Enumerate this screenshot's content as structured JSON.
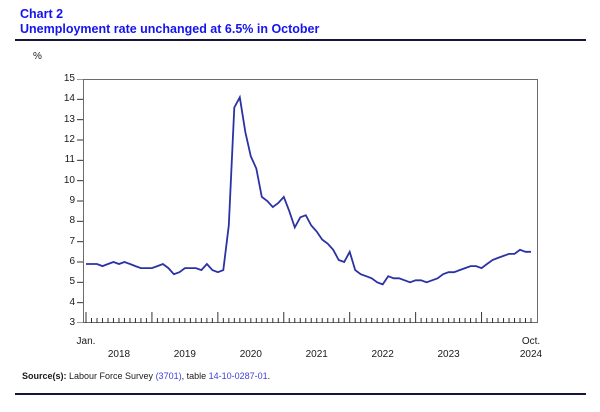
{
  "header": {
    "chart_label": "Chart 2",
    "title": "Unemployment rate unchanged at 6.5% in October"
  },
  "chart_data": {
    "type": "line",
    "title": "Unemployment rate unchanged at 6.5% in October",
    "unit_label": "%",
    "ylim": [
      3,
      15
    ],
    "y_ticks": [
      15,
      14,
      13,
      12,
      11,
      10,
      9,
      8,
      7,
      6,
      5,
      4,
      3
    ],
    "x_frequency": "monthly",
    "x_start": "2018-01",
    "x_end": "2024-10",
    "x_first_month_label": "Jan.",
    "x_last_month_label": "Oct.",
    "year_labels": [
      "2018",
      "2019",
      "2020",
      "2021",
      "2022",
      "2023",
      "2024"
    ],
    "grid": false,
    "legend": "none",
    "line_color": "#2b32a5",
    "series": [
      {
        "name": "Unemployment rate (%)",
        "values": [
          5.9,
          5.9,
          5.9,
          5.8,
          5.9,
          6.0,
          5.9,
          6.0,
          5.9,
          5.8,
          5.7,
          5.7,
          5.7,
          5.8,
          5.9,
          5.7,
          5.4,
          5.5,
          5.7,
          5.7,
          5.7,
          5.6,
          5.9,
          5.6,
          5.5,
          5.6,
          7.8,
          13.6,
          14.1,
          12.4,
          11.2,
          10.6,
          9.2,
          9.0,
          8.7,
          8.9,
          9.2,
          8.5,
          7.7,
          8.2,
          8.3,
          7.8,
          7.5,
          7.1,
          6.9,
          6.6,
          6.1,
          6.0,
          6.5,
          5.6,
          5.4,
          5.3,
          5.2,
          5.0,
          4.9,
          5.3,
          5.2,
          5.2,
          5.1,
          5.0,
          5.1,
          5.1,
          5.0,
          5.1,
          5.2,
          5.4,
          5.5,
          5.5,
          5.6,
          5.7,
          5.8,
          5.8,
          5.7,
          5.9,
          6.1,
          6.2,
          6.3,
          6.4,
          6.4,
          6.6,
          6.5,
          6.5
        ]
      }
    ]
  },
  "source": {
    "label": "Source(s):",
    "text_1": " Labour Force Survey ",
    "link_1": "(3701)",
    "text_2": ", table ",
    "link_2": "14-10-0287-01",
    "text_3": "."
  }
}
